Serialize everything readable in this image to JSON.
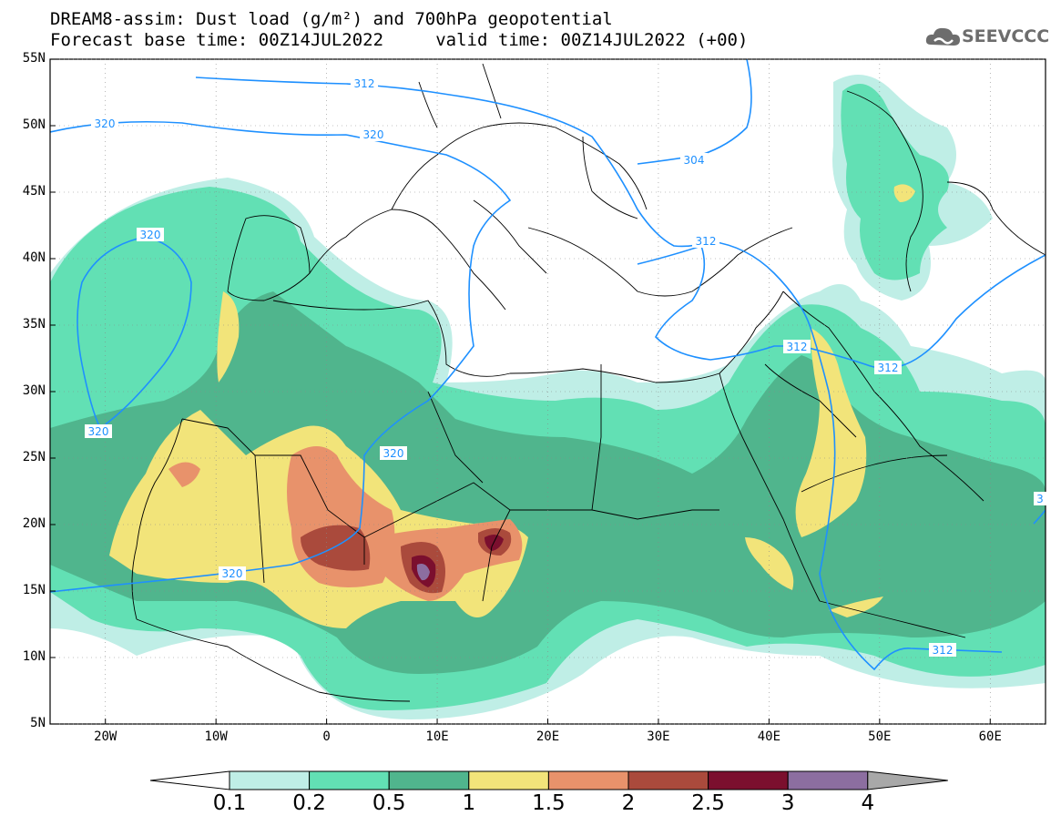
{
  "title": {
    "line1": "DREAM8-assim: Dust load (g/m²) and 700hPa geopotential",
    "line2": "Forecast base time: 00Z14JUL2022     valid time: 00Z14JUL2022 (+00)"
  },
  "logo": {
    "text": "SEEVCCC",
    "icon": "cloud-logo-icon",
    "color": "#6d6d6d"
  },
  "map": {
    "lon_range": [
      -25,
      65
    ],
    "lat_range": [
      5,
      55
    ],
    "lat_labels": [
      "55N",
      "50N",
      "45N",
      "40N",
      "35N",
      "30N",
      "25N",
      "20N",
      "15N",
      "10N",
      "5N"
    ],
    "lon_labels": [
      "20W",
      "10W",
      "0",
      "10E",
      "20E",
      "30E",
      "40E",
      "50E",
      "60E"
    ],
    "contour_color": "#1e90ff",
    "contour_labels": [
      "312",
      "320",
      "320",
      "320",
      "304",
      "312",
      "320",
      "320",
      "320",
      "312",
      "312",
      "312",
      "3"
    ]
  },
  "colorbar": {
    "labels": [
      "0.1",
      "0.2",
      "0.5",
      "1",
      "1.5",
      "2",
      "2.5",
      "3",
      "4"
    ],
    "colors": [
      "#bfeee6",
      "#62e0b4",
      "#50b58d",
      "#f2e47a",
      "#e8926b",
      "#aa4a3c",
      "#7b0f2e",
      "#8c6ea0",
      "#a8a8a8"
    ]
  }
}
